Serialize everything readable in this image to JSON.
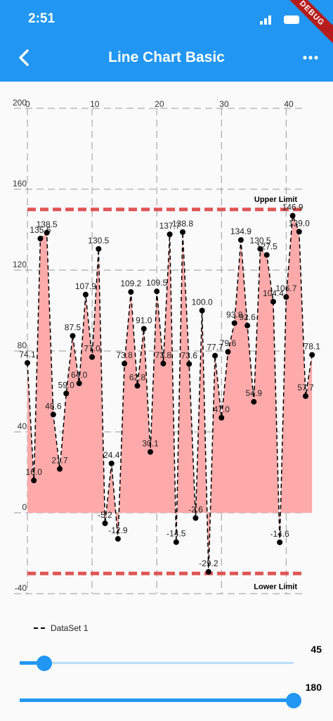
{
  "status_bar": {
    "time": "2:51",
    "debug_label": "DEBUG"
  },
  "app_bar": {
    "title": "Line Chart Basic",
    "back_icon": "chevron-left-icon",
    "more_icon": "more-horiz-icon"
  },
  "chart_data": {
    "type": "area",
    "xlim": [
      0,
      43
    ],
    "ylim": [
      -40,
      200
    ],
    "x_ticks": [
      "0",
      "10",
      "20",
      "30",
      "40"
    ],
    "y_ticks": [
      "-40",
      "0",
      "40",
      "80",
      "120",
      "160",
      "200"
    ],
    "grid": true,
    "legend_placement": "bottom-left",
    "series": [
      {
        "name": "DataSet 1",
        "color": "#000000",
        "fill": "#ffaaaa",
        "values": [
          74.1,
          16.0,
          135.6,
          138.5,
          48.6,
          21.7,
          59.0,
          87.5,
          64.0,
          107.9,
          77.0,
          130.5,
          -5.2,
          24.4,
          -12.9,
          73.8,
          109.2,
          62.8,
          91.0,
          30.1,
          109.5,
          73.8,
          137.7,
          -14.5,
          138.8,
          73.6,
          -2.6,
          100.0,
          -29.2,
          77.7,
          47.0,
          79.6,
          93.8,
          134.9,
          92.6,
          54.9,
          130.5,
          127.5,
          104.4,
          -14.6,
          106.7,
          146.9,
          139.0,
          57.7,
          78.1
        ],
        "labels": [
          "74.1",
          "16.0",
          "135.6",
          "138.5",
          "48.6",
          "21.7",
          "59.0",
          "87.5",
          "64.0",
          "107.9",
          "77.0",
          "130.5",
          "-5.2",
          "24.4",
          "-12.9",
          "73.8",
          "109.2",
          "62.8",
          "91.0",
          "30.1",
          "109.5",
          "73.8",
          "137.7",
          "-14.5",
          "138.8",
          "73.6",
          "-2.6",
          "100.0",
          "-29.2",
          "77.7",
          "47.0",
          "79.6",
          "93.8",
          "134.9",
          "92.6",
          "54.9",
          "130.5",
          "127.5",
          "104.4",
          "-14.6",
          "106.7",
          "146.9",
          "139.0",
          "57.7",
          "78.1"
        ]
      }
    ],
    "limit_lines": [
      {
        "label": "Upper Limit",
        "value": 150,
        "color": "#e05555"
      },
      {
        "label": "Lower Limit",
        "value": -30,
        "color": "#e05555"
      }
    ]
  },
  "sliders": [
    {
      "name": "x-count-slider",
      "value": 45,
      "value_label": "45",
      "fraction": 0.09
    },
    {
      "name": "y-range-slider",
      "value": 180,
      "value_label": "180",
      "fraction": 1.0
    }
  ]
}
